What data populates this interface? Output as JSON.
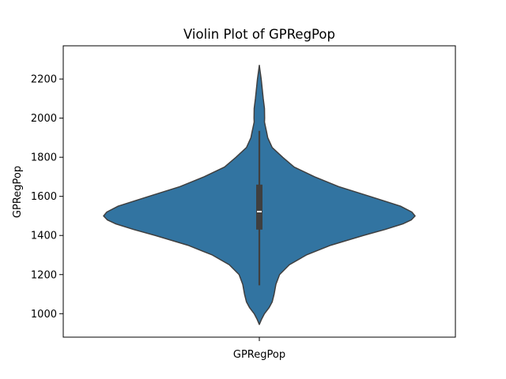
{
  "chart_data": {
    "type": "violin",
    "title": "Violin Plot of GPRegPop",
    "xlabel": "",
    "ylabel": "GPRegPop",
    "categories": [
      "GPRegPop"
    ],
    "ylim": [
      880,
      2370
    ],
    "yticks": [
      1000,
      1200,
      1400,
      1600,
      1800,
      2000,
      2200
    ],
    "grid": false,
    "violin_color": "#3274a1",
    "outline_color": "#3f3f3f",
    "box_color": "#3f3f3f",
    "median_color": "#ffffff",
    "density": {
      "y": [
        945,
        970,
        1000,
        1030,
        1060,
        1100,
        1150,
        1200,
        1250,
        1300,
        1350,
        1400,
        1430,
        1460,
        1480,
        1500,
        1520,
        1550,
        1600,
        1650,
        1700,
        1750,
        1800,
        1850,
        1900,
        1930,
        1950,
        1980,
        2000,
        2050,
        2100,
        2150,
        2200,
        2240,
        2270
      ],
      "half_width": [
        0.0,
        0.027,
        0.066,
        0.124,
        0.165,
        0.19,
        0.213,
        0.26,
        0.385,
        0.603,
        0.917,
        1.335,
        1.608,
        1.848,
        1.953,
        2.0,
        1.958,
        1.812,
        1.418,
        1.018,
        0.71,
        0.447,
        0.3,
        0.165,
        0.108,
        0.093,
        0.082,
        0.066,
        0.068,
        0.066,
        0.05,
        0.037,
        0.024,
        0.01,
        0.0
      ]
    },
    "box": {
      "q1": 1430,
      "median": 1522,
      "q3": 1660,
      "whisker_low": 1145,
      "whisker_high": 1935
    }
  }
}
